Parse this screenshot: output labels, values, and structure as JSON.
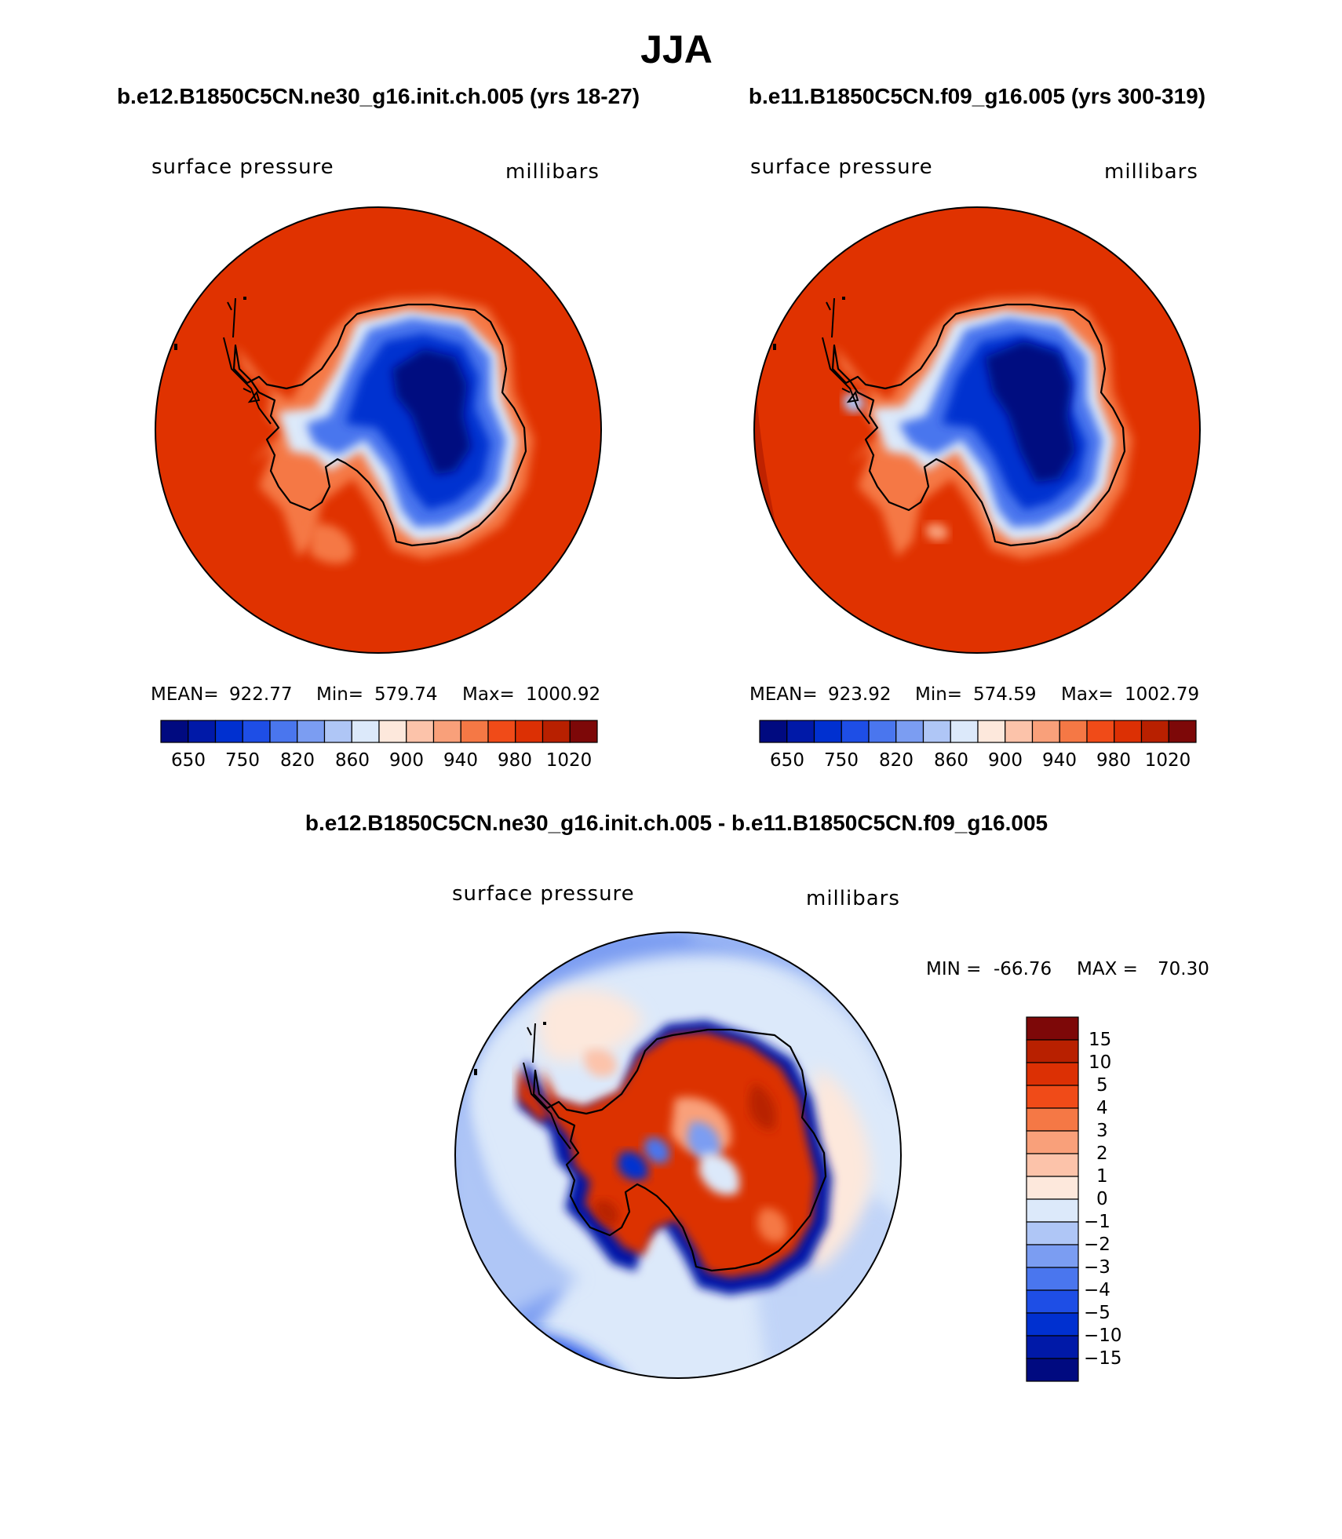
{
  "figure": {
    "title": "JJA",
    "colors": {
      "land_outline": "#000000",
      "ocean_fill": "#e03200",
      "panel_border": "#000000"
    }
  },
  "panels": [
    {
      "title": "b.e12.B1850C5CN.ne30_g16.init.ch.005 (yrs 18-27)",
      "left_label": "surface pressure",
      "right_label": "millibars",
      "stats": {
        "mean_label": "MEAN=",
        "mean": "922.77",
        "min_label": "Min=",
        "min": "579.74",
        "max_label": "Max=",
        "max": "1000.92"
      },
      "colorbar_ticks": [
        "650",
        "750",
        "820",
        "860",
        "900",
        "940",
        "980",
        "1020"
      ]
    },
    {
      "title": "b.e11.B1850C5CN.f09_g16.005 (yrs 300-319)",
      "left_label": "surface pressure",
      "right_label": "millibars",
      "stats": {
        "mean_label": "MEAN=",
        "mean": "923.92",
        "min_label": "Min=",
        "min": "574.59",
        "max_label": "Max=",
        "max": "1002.79"
      },
      "colorbar_ticks": [
        "650",
        "750",
        "820",
        "860",
        "900",
        "940",
        "980",
        "1020"
      ]
    }
  ],
  "diff_panel": {
    "title": "b.e12.B1850C5CN.ne30_g16.init.ch.005 - b.e11.B1850C5CN.f09_g16.005",
    "left_label": "surface pressure",
    "right_label": "millibars",
    "min_label": "MIN =",
    "min": "-66.76",
    "max_label": "MAX =",
    "max": "70.30",
    "colorbar_labels": [
      "15",
      "10",
      "5",
      "4",
      "3",
      "2",
      "1",
      "0",
      "−1",
      "−2",
      "−3",
      "−4",
      "−5",
      "−10",
      "−15"
    ]
  },
  "abs_colormap": [
    "#000a80",
    "#0019a8",
    "#0030d0",
    "#1e4ee6",
    "#4a76ee",
    "#7b9df2",
    "#afc6f6",
    "#dce9fa",
    "#fde8dc",
    "#fcc3aa",
    "#f9a07a",
    "#f57845",
    "#f04b18",
    "#dc3004",
    "#b82000",
    "#7d0808"
  ],
  "diff_colormap": [
    "#000a80",
    "#0019a8",
    "#0030d0",
    "#1e4ee6",
    "#4a76ee",
    "#7b9df2",
    "#afc6f6",
    "#dce9fa",
    "#fde8dc",
    "#fcc3aa",
    "#f9a07a",
    "#f57845",
    "#f04b18",
    "#dc3004",
    "#b82000",
    "#7d0808"
  ]
}
